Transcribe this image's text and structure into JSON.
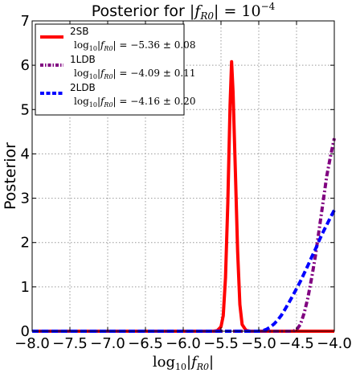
{
  "chart_data": {
    "type": "line",
    "title_prefix": "Posterior for ",
    "title_math": "|f",
    "title_sub": "R0",
    "title_suffix": "| = 10",
    "title_exp": "−4",
    "xlabel_main": "log",
    "xlabel_base": "10",
    "xlabel_var": "|f",
    "xlabel_sub": "R0",
    "xlabel_end": "|",
    "ylabel": "Posterior",
    "xlim": [
      -8.0,
      -4.0
    ],
    "ylim": [
      0,
      7
    ],
    "xticks": [
      -8.0,
      -7.5,
      -7.0,
      -6.5,
      -6.0,
      -5.5,
      -5.0,
      -4.5,
      -4.0
    ],
    "xtick_labels": [
      "−8.0",
      "−7.5",
      "−7.0",
      "−6.5",
      "−6.0",
      "−5.5",
      "−5.0",
      "−4.5",
      "−4.0"
    ],
    "yticks": [
      0,
      1,
      2,
      3,
      4,
      5,
      6,
      7
    ],
    "ytick_labels": [
      "0",
      "1",
      "2",
      "3",
      "4",
      "5",
      "6",
      "7"
    ],
    "grid": true,
    "legend_position": "top-left",
    "series": [
      {
        "name": "2SB",
        "annotation_prefix": "log",
        "annotation_base": "10",
        "annotation_var": "|f",
        "annotation_sub": "R0",
        "annotation_value": "| = −5.36 ± 0.08",
        "color": "#ff0000",
        "style": "solid",
        "x": [
          -8.0,
          -5.6,
          -5.55,
          -5.5,
          -5.47,
          -5.44,
          -5.41,
          -5.38,
          -5.36,
          -5.34,
          -5.31,
          -5.28,
          -5.25,
          -5.22,
          -5.17,
          -5.12,
          -4.0
        ],
        "y": [
          0.0,
          0.0,
          0.01,
          0.1,
          0.35,
          1.2,
          2.9,
          5.1,
          6.08,
          5.4,
          3.6,
          1.8,
          0.6,
          0.15,
          0.02,
          0.0,
          0.0
        ]
      },
      {
        "name": "1LDB",
        "annotation_prefix": "log",
        "annotation_base": "10",
        "annotation_var": "|f",
        "annotation_sub": "R0",
        "annotation_value": "| = −4.09 ± 0.11",
        "color": "#800080",
        "style": "dashdot",
        "x": [
          -8.0,
          -4.55,
          -4.5,
          -4.45,
          -4.4,
          -4.35,
          -4.3,
          -4.25,
          -4.2,
          -4.15,
          -4.1,
          -4.05,
          -4.0
        ],
        "y": [
          0.0,
          0.0,
          0.03,
          0.15,
          0.4,
          0.75,
          1.2,
          1.7,
          2.3,
          2.9,
          3.5,
          3.95,
          4.35
        ]
      },
      {
        "name": "2LDB",
        "annotation_prefix": "log",
        "annotation_base": "10",
        "annotation_var": "|f",
        "annotation_sub": "R0",
        "annotation_value": "| = −4.16 ± 0.20",
        "color": "#0000ff",
        "style": "dashed",
        "x": [
          -8.0,
          -5.0,
          -4.95,
          -4.9,
          -4.85,
          -4.8,
          -4.75,
          -4.7,
          -4.65,
          -4.6,
          -4.55,
          -4.5,
          -4.45,
          -4.4,
          -4.35,
          -4.3,
          -4.25,
          -4.2,
          -4.15,
          -4.1,
          -4.05,
          -4.0
        ],
        "y": [
          0.0,
          0.0,
          0.01,
          0.04,
          0.09,
          0.16,
          0.25,
          0.36,
          0.5,
          0.65,
          0.8,
          0.96,
          1.12,
          1.3,
          1.48,
          1.67,
          1.85,
          2.05,
          2.23,
          2.4,
          2.57,
          2.73
        ]
      }
    ]
  }
}
